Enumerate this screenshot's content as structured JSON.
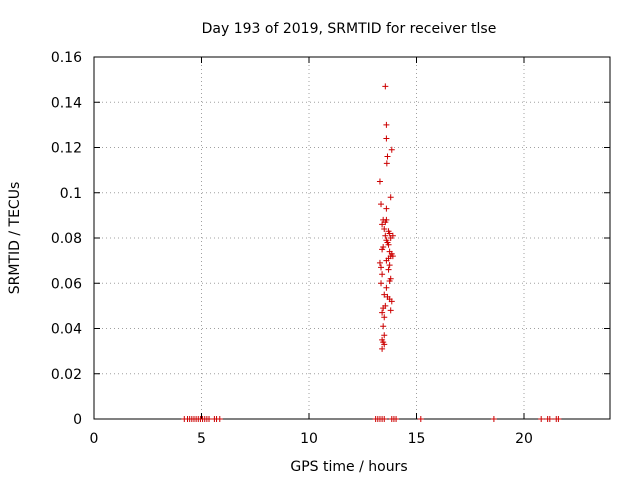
{
  "chart_data": {
    "type": "scatter",
    "title": "Day 193 of 2019, SRMTID for receiver tlse",
    "xlabel": "GPS time / hours",
    "ylabel": "SRMTID / TECUs",
    "xlim": [
      0,
      24
    ],
    "ylim": [
      0,
      0.16
    ],
    "xticks": [
      0,
      5,
      10,
      15,
      20
    ],
    "xtick_labels": [
      "0",
      "5",
      "10",
      "15",
      "20"
    ],
    "yticks": [
      0,
      0.02,
      0.04,
      0.06,
      0.08,
      0.1,
      0.12,
      0.14,
      0.16
    ],
    "ytick_labels": [
      "0",
      "0.02",
      "0.04",
      "0.06",
      "0.08",
      "0.1",
      "0.12",
      "0.14",
      "0.16"
    ],
    "grid": true,
    "marker": "plus",
    "color": "#cc0000",
    "series": [
      {
        "points": [
          [
            4.2,
            0
          ],
          [
            4.35,
            0
          ],
          [
            4.45,
            0
          ],
          [
            4.55,
            0
          ],
          [
            4.65,
            0
          ],
          [
            4.75,
            0
          ],
          [
            4.85,
            0
          ],
          [
            4.95,
            0
          ],
          [
            5.05,
            0
          ],
          [
            5.15,
            0
          ],
          [
            5.25,
            0
          ],
          [
            5.35,
            0
          ],
          [
            5.6,
            0
          ],
          [
            5.7,
            0
          ],
          [
            5.85,
            0
          ],
          [
            13.1,
            0
          ],
          [
            13.2,
            0
          ],
          [
            13.3,
            0
          ],
          [
            13.4,
            0
          ],
          [
            13.5,
            0
          ],
          [
            13.85,
            0
          ],
          [
            13.95,
            0
          ],
          [
            14.05,
            0
          ],
          [
            15.2,
            0
          ],
          [
            18.6,
            0
          ],
          [
            20.8,
            0
          ],
          [
            21.1,
            0
          ],
          [
            21.2,
            0
          ],
          [
            21.5,
            0
          ],
          [
            21.6,
            0
          ],
          [
            13.55,
            0.147
          ],
          [
            13.6,
            0.13
          ],
          [
            13.6,
            0.124
          ],
          [
            13.65,
            0.116
          ],
          [
            13.62,
            0.113
          ],
          [
            13.85,
            0.119
          ],
          [
            13.3,
            0.105
          ],
          [
            13.8,
            0.098
          ],
          [
            13.35,
            0.095
          ],
          [
            13.6,
            0.093
          ],
          [
            13.45,
            0.088
          ],
          [
            13.55,
            0.087
          ],
          [
            13.6,
            0.088
          ],
          [
            13.4,
            0.086
          ],
          [
            13.5,
            0.084
          ],
          [
            13.7,
            0.083
          ],
          [
            13.75,
            0.082
          ],
          [
            13.8,
            0.08
          ],
          [
            13.9,
            0.081
          ],
          [
            13.55,
            0.081
          ],
          [
            13.6,
            0.079
          ],
          [
            13.65,
            0.078
          ],
          [
            13.7,
            0.077
          ],
          [
            13.45,
            0.076
          ],
          [
            13.4,
            0.075
          ],
          [
            13.75,
            0.074
          ],
          [
            13.8,
            0.072
          ],
          [
            13.7,
            0.071
          ],
          [
            13.85,
            0.073
          ],
          [
            13.9,
            0.072
          ],
          [
            13.6,
            0.07
          ],
          [
            13.3,
            0.069
          ],
          [
            13.35,
            0.067
          ],
          [
            13.75,
            0.068
          ],
          [
            13.7,
            0.066
          ],
          [
            13.4,
            0.064
          ],
          [
            13.8,
            0.062
          ],
          [
            13.75,
            0.061
          ],
          [
            13.35,
            0.06
          ],
          [
            13.6,
            0.058
          ],
          [
            13.5,
            0.055
          ],
          [
            13.65,
            0.054
          ],
          [
            13.75,
            0.053
          ],
          [
            13.85,
            0.052
          ],
          [
            13.55,
            0.05
          ],
          [
            13.45,
            0.049
          ],
          [
            13.8,
            0.048
          ],
          [
            13.4,
            0.047
          ],
          [
            13.5,
            0.045
          ],
          [
            13.45,
            0.041
          ],
          [
            13.5,
            0.037
          ],
          [
            13.4,
            0.035
          ],
          [
            13.45,
            0.034
          ],
          [
            13.5,
            0.033
          ],
          [
            13.4,
            0.031
          ]
        ]
      }
    ]
  }
}
